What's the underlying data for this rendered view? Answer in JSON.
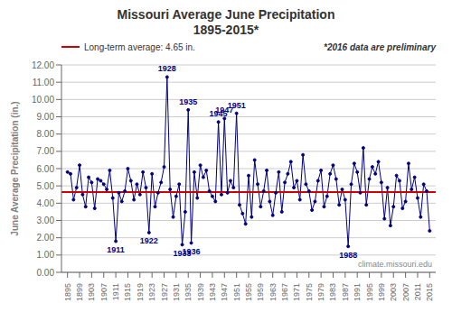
{
  "chart_data": {
    "type": "line",
    "title": "Missouri Average June Precipitation",
    "subtitle": "1895-2015*",
    "y_label": "June Average Precipitation (in.)",
    "x": [
      1895,
      1896,
      1897,
      1898,
      1899,
      1900,
      1901,
      1902,
      1903,
      1904,
      1905,
      1906,
      1907,
      1908,
      1909,
      1910,
      1911,
      1912,
      1913,
      1914,
      1915,
      1916,
      1917,
      1918,
      1919,
      1920,
      1921,
      1922,
      1923,
      1924,
      1925,
      1926,
      1927,
      1928,
      1929,
      1930,
      1931,
      1932,
      1933,
      1934,
      1935,
      1936,
      1937,
      1938,
      1939,
      1940,
      1941,
      1942,
      1943,
      1944,
      1945,
      1946,
      1947,
      1948,
      1949,
      1950,
      1951,
      1952,
      1953,
      1954,
      1955,
      1956,
      1957,
      1958,
      1959,
      1960,
      1961,
      1962,
      1963,
      1964,
      1965,
      1966,
      1967,
      1968,
      1969,
      1970,
      1971,
      1972,
      1973,
      1974,
      1975,
      1976,
      1977,
      1978,
      1979,
      1980,
      1981,
      1982,
      1983,
      1984,
      1985,
      1986,
      1987,
      1988,
      1989,
      1990,
      1991,
      1992,
      1993,
      1994,
      1995,
      1996,
      1997,
      1998,
      1999,
      2000,
      2001,
      2002,
      2003,
      2004,
      2005,
      2006,
      2007,
      2008,
      2009,
      2010,
      2011,
      2012,
      2013,
      2014,
      2015
    ],
    "values": [
      5.8,
      5.7,
      4.2,
      4.9,
      6.2,
      4.5,
      3.8,
      5.5,
      5.2,
      3.7,
      5.4,
      5.3,
      5.1,
      4.8,
      5.9,
      4.3,
      1.8,
      4.6,
      4.1,
      4.7,
      6.0,
      5.3,
      4.2,
      5.1,
      4.5,
      5.8,
      4.9,
      2.3,
      5.7,
      3.8,
      4.6,
      5.2,
      6.1,
      11.3,
      4.8,
      3.2,
      4.4,
      5.1,
      1.6,
      3.5,
      9.4,
      1.7,
      5.8,
      4.3,
      6.2,
      5.5,
      5.9,
      4.7,
      4.4,
      4.1,
      8.7,
      4.5,
      8.9,
      4.6,
      5.3,
      4.9,
      9.2,
      3.9,
      3.4,
      2.8,
      5.6,
      3.2,
      6.5,
      5.1,
      3.8,
      4.7,
      5.9,
      4.1,
      3.3,
      4.6,
      5.8,
      3.5,
      5.2,
      5.7,
      6.4,
      4.9,
      5.3,
      4.2,
      6.8,
      5.1,
      4.7,
      3.6,
      4.1,
      5.3,
      5.9,
      3.8,
      4.4,
      5.7,
      6.2,
      5.4,
      3.9,
      4.8,
      4.2,
      1.5,
      5.1,
      6.3,
      5.8,
      4.6,
      7.2,
      3.9,
      5.4,
      6.1,
      5.7,
      6.4,
      5.2,
      3.1,
      4.9,
      2.7,
      3.8,
      5.6,
      5.3,
      3.7,
      4.1,
      6.3,
      4.8,
      5.5,
      4.3,
      3.2,
      5.1,
      4.7,
      2.4
    ],
    "color": "#000080",
    "marker": "circle",
    "xlim": [
      1893,
      2017
    ],
    "xticks": [
      1895,
      1899,
      1903,
      1907,
      1911,
      1915,
      1919,
      1923,
      1927,
      1931,
      1935,
      1939,
      1943,
      1947,
      1951,
      1955,
      1959,
      1963,
      1967,
      1971,
      1975,
      1979,
      1983,
      1987,
      1991,
      1995,
      1999,
      2003,
      2007,
      2011,
      2015
    ],
    "ylim": [
      0.0,
      12.0
    ],
    "yticks": [
      {
        "value": 0.0,
        "label": "0.00"
      },
      {
        "value": 1.0,
        "label": "1.00"
      },
      {
        "value": 2.0,
        "label": "2.00"
      },
      {
        "value": 3.0,
        "label": "3.00"
      },
      {
        "value": 4.0,
        "label": "4.00"
      },
      {
        "value": 5.0,
        "label": "5.00"
      },
      {
        "value": 6.0,
        "label": "6.00"
      },
      {
        "value": 7.0,
        "label": "7.00"
      },
      {
        "value": 8.0,
        "label": "8.00"
      },
      {
        "value": 9.0,
        "label": "9.00"
      },
      {
        "value": 10.0,
        "label": "10.00"
      },
      {
        "value": 11.0,
        "label": "11.00"
      },
      {
        "value": 12.0,
        "label": "12.00"
      }
    ],
    "grid": true,
    "legend": "upper left",
    "reference_line": {
      "value": 4.65,
      "label": "Long-term average: 4.65 in.",
      "color": "#CC0000"
    },
    "annotations": [
      {
        "text": "1928",
        "x": 1928,
        "y": 11.3,
        "position": "above"
      },
      {
        "text": "1935",
        "x": 1935,
        "y": 9.4,
        "position": "above"
      },
      {
        "text": "1945",
        "x": 1945,
        "y": 8.7,
        "position": "above"
      },
      {
        "text": "1947",
        "x": 1947,
        "y": 8.9,
        "position": "above"
      },
      {
        "text": "1951",
        "x": 1951,
        "y": 9.2,
        "position": "above"
      },
      {
        "text": "1911",
        "x": 1911,
        "y": 1.8,
        "position": "below"
      },
      {
        "text": "1922",
        "x": 1922,
        "y": 2.3,
        "position": "below"
      },
      {
        "text": "1933",
        "x": 1933,
        "y": 1.6,
        "position": "below"
      },
      {
        "text": "1936",
        "x": 1936,
        "y": 1.7,
        "position": "below"
      },
      {
        "text": "1988",
        "x": 1988,
        "y": 1.5,
        "position": "below"
      }
    ],
    "note": "*2016 data are preliminary",
    "source": "climate.missouri.edu"
  }
}
